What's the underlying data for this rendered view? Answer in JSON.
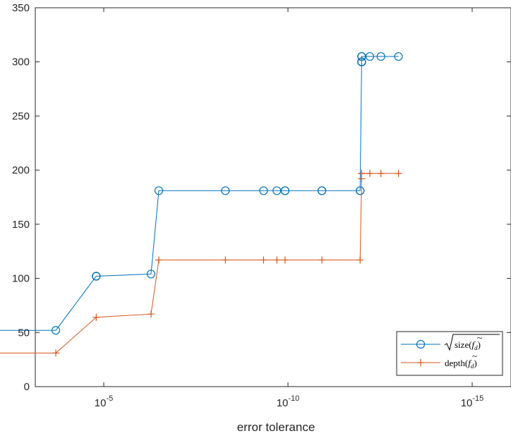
{
  "chart_data": {
    "type": "line",
    "title": "",
    "xlabel": "error tolerance",
    "ylabel": "",
    "x_scale": "log",
    "x_reversed": true,
    "xlim": [
      0.01,
      1e-17
    ],
    "ylim": [
      0,
      350
    ],
    "grid": false,
    "legend_position": "bottom-right",
    "x_ticks": [
      {
        "value": 1e-05,
        "base": "10",
        "exp": "-5"
      },
      {
        "value": 1e-10,
        "base": "10",
        "exp": "-10"
      },
      {
        "value": 1e-15,
        "base": "10",
        "exp": "-15"
      }
    ],
    "y_ticks": [
      "0",
      "50",
      "100",
      "150",
      "200",
      "250",
      "300",
      "350"
    ],
    "series": [
      {
        "name": "√size(f̃_d)",
        "legend_label_parts": {
          "radical": "size(",
          "f": "f",
          "sub": "d",
          "close": ")"
        },
        "color": "#0072BD",
        "marker": "circle",
        "x": [
          0.01,
          0.01,
          0.01,
          0.01,
          0.0002,
          1.6e-05,
          1.6e-05,
          1.6e-05,
          5.2e-07,
          3.2e-07,
          5e-09,
          4.6e-10,
          2e-10,
          1.2e-10,
          1.2e-10,
          1.2e-11,
          1.2e-11,
          1.1e-12,
          1.1e-12,
          1e-12,
          1e-12,
          1e-12,
          1e-12,
          1e-12,
          1e-12,
          1e-12,
          6e-13,
          3e-13,
          1e-13
        ],
        "values": [
          52,
          52,
          52,
          52,
          52,
          102,
          102,
          102,
          104,
          181,
          181,
          181,
          181,
          181,
          181,
          181,
          181,
          181,
          181,
          300,
          300,
          300,
          300,
          305,
          305,
          305,
          305,
          305,
          305
        ]
      },
      {
        "name": "depth(f̃_d)",
        "legend_label_parts": {
          "text": "depth(",
          "f": "f",
          "sub": "d",
          "close": ")"
        },
        "color": "#D95319",
        "marker": "plus",
        "x": [
          0.01,
          0.01,
          0.0002,
          1.6e-05,
          5.2e-07,
          3.2e-07,
          5e-09,
          4.6e-10,
          2e-10,
          1.2e-10,
          1.2e-11,
          1.1e-12,
          1e-12,
          1e-12,
          1e-12,
          1e-12,
          6e-13,
          3e-13,
          1e-13
        ],
        "values": [
          31,
          31,
          31,
          64,
          67,
          117,
          117,
          117,
          117,
          117,
          117,
          117,
          192,
          192,
          197,
          197,
          197,
          197,
          197
        ]
      }
    ]
  }
}
